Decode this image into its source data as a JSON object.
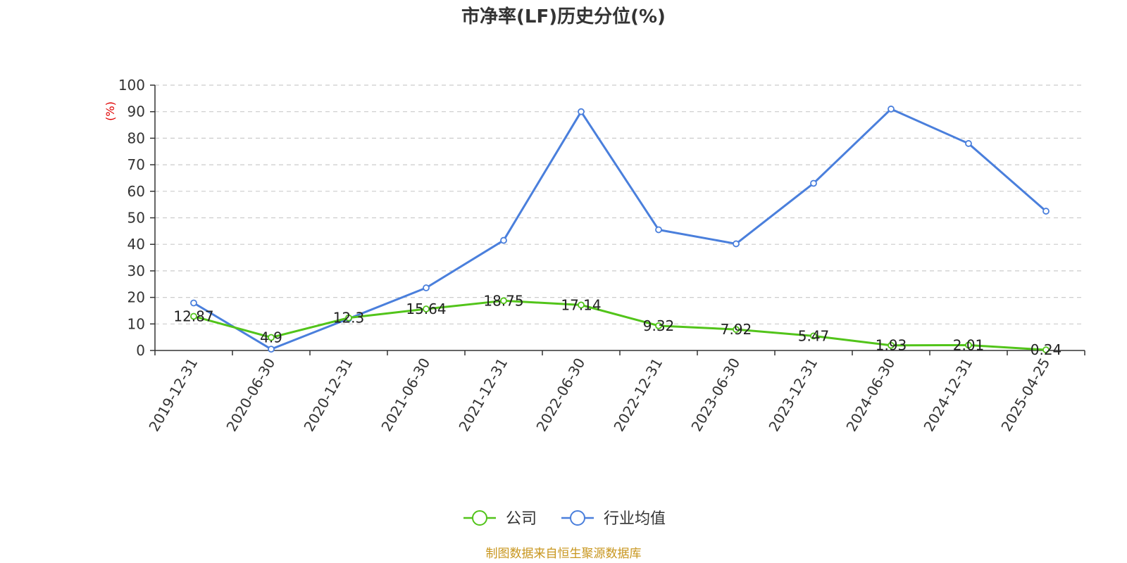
{
  "chart_data": {
    "type": "line",
    "title": "市净率(LF)历史分位(%)",
    "ylabel": "(%)",
    "ylim": [
      0,
      100
    ],
    "yticks": [
      0,
      10,
      20,
      30,
      40,
      50,
      60,
      70,
      80,
      90,
      100
    ],
    "grid": true,
    "legend_position": "bottom",
    "categories": [
      "2019-12-31",
      "2020-06-30",
      "2020-12-31",
      "2021-06-30",
      "2021-12-31",
      "2022-06-30",
      "2022-12-31",
      "2023-06-30",
      "2023-12-31",
      "2024-06-30",
      "2024-12-31",
      "2025-04-25"
    ],
    "series": [
      {
        "name": "公司",
        "color": "#52c41a",
        "values": [
          12.87,
          4.9,
          12.3,
          15.64,
          18.75,
          17.14,
          9.32,
          7.92,
          5.47,
          1.93,
          2.01,
          0.24
        ],
        "data_labels": [
          "12.87",
          "4.9",
          "12.3",
          "15.64",
          "18.75",
          "17.14",
          "9.32",
          "7.92",
          "5.47",
          "1.93",
          "2.01",
          "0.24"
        ]
      },
      {
        "name": "行业均值",
        "color": "#4a7fdc",
        "values": [
          17.9,
          0.5,
          12.0,
          23.6,
          41.5,
          90.0,
          45.5,
          40.2,
          63.0,
          91.0,
          78.0,
          52.5
        ]
      }
    ],
    "source": "制图数据来自恒生聚源数据库",
    "source_color": "#c8961e",
    "ylabel_color": "#e00000"
  }
}
